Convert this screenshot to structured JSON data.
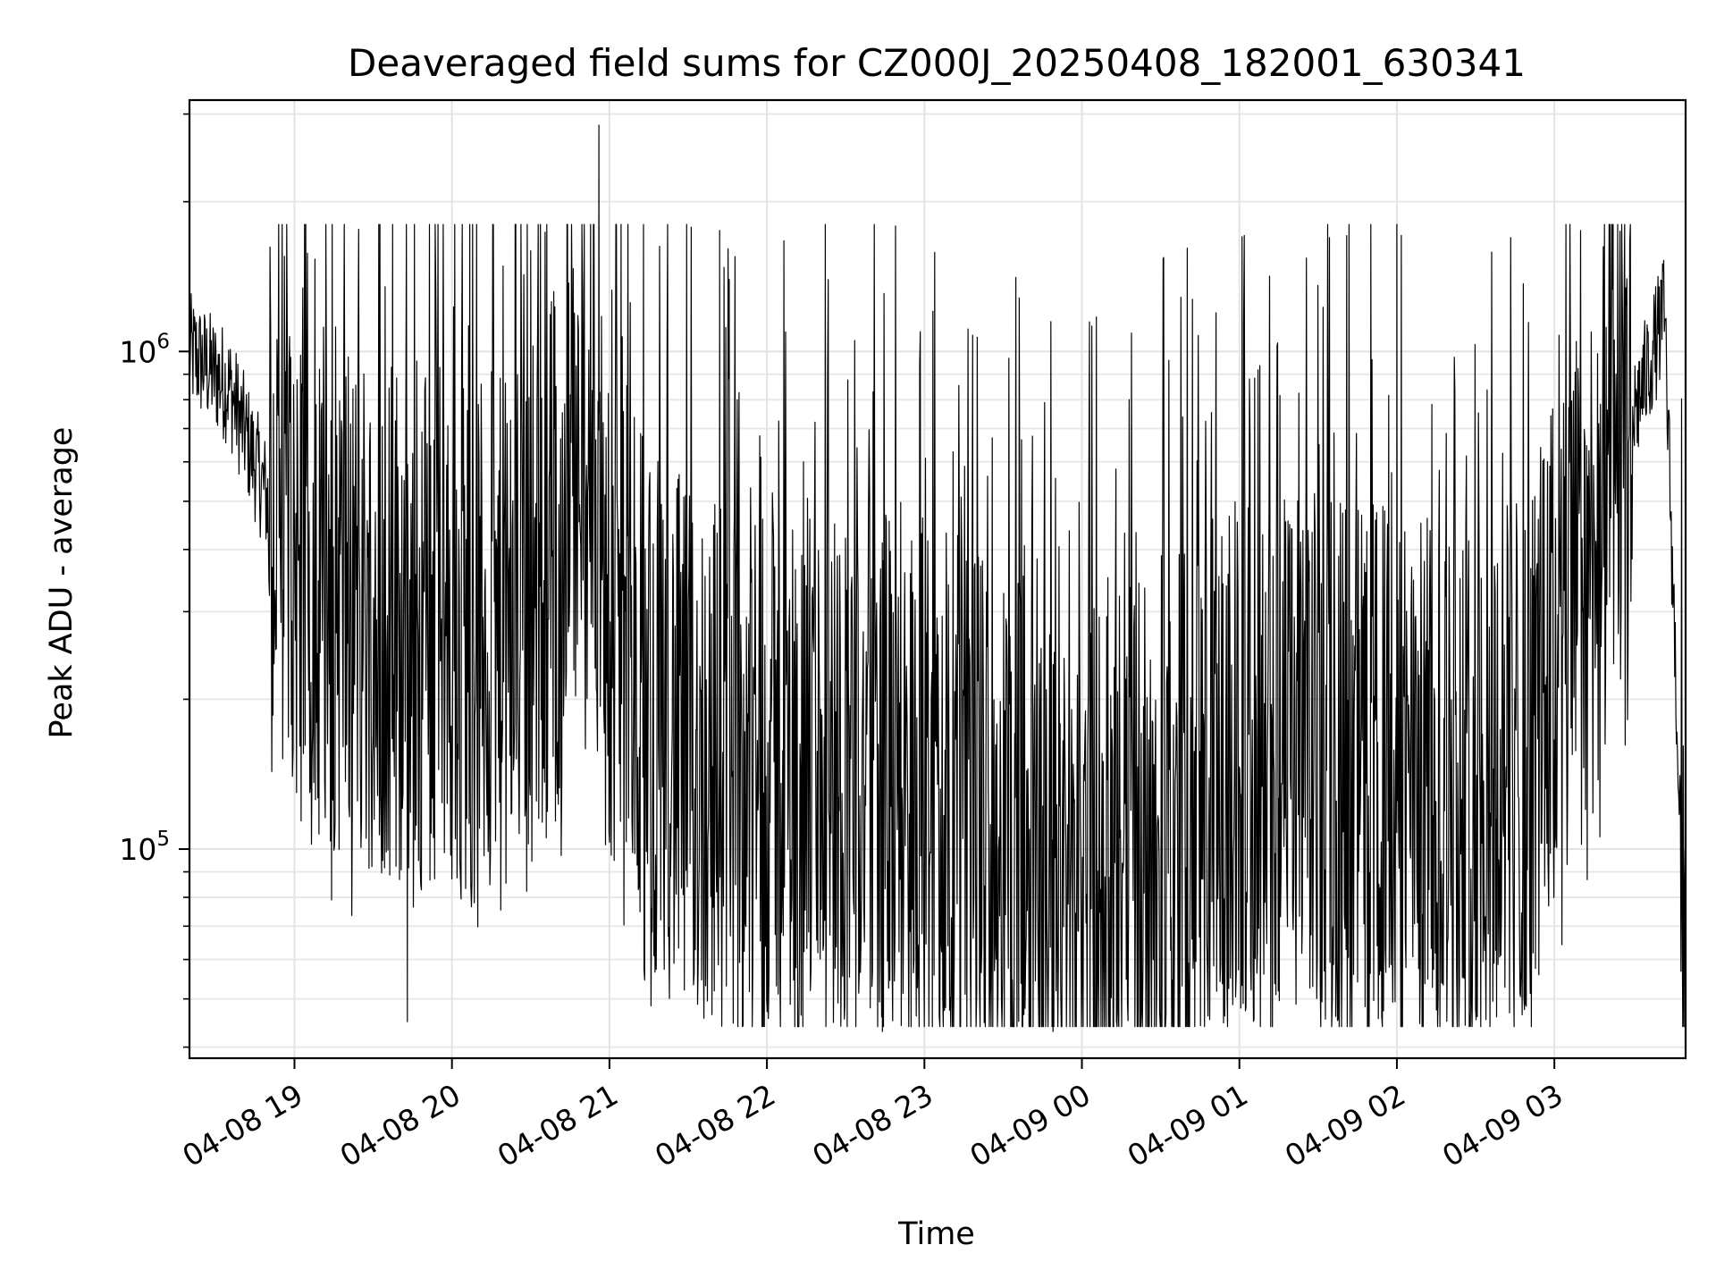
{
  "chart_data": {
    "type": "line",
    "title": "Deaveraged field sums for CZ000J_20250408_182001_630341",
    "xlabel": "Time",
    "ylabel": "Peak ADU - average",
    "yscale": "log",
    "grid": true,
    "x_range": [
      "04-08 18:20",
      "04-09 03:50"
    ],
    "ylim": [
      38000,
      3200000
    ],
    "x_ticks": [
      {
        "time": "04-08 19:00",
        "label": "04-08 19"
      },
      {
        "time": "04-08 20:00",
        "label": "04-08 20"
      },
      {
        "time": "04-08 21:00",
        "label": "04-08 21"
      },
      {
        "time": "04-08 22:00",
        "label": "04-08 22"
      },
      {
        "time": "04-08 23:00",
        "label": "04-08 23"
      },
      {
        "time": "04-09 00:00",
        "label": "04-09 00"
      },
      {
        "time": "04-09 01:00",
        "label": "04-09 01"
      },
      {
        "time": "04-09 02:00",
        "label": "04-09 02"
      },
      {
        "time": "04-09 03:00",
        "label": "04-09 03"
      }
    ],
    "y_ticks": [
      {
        "value": 100000,
        "base": "10",
        "exp": "5"
      },
      {
        "value": 1000000,
        "base": "10",
        "exp": "6"
      }
    ],
    "series": [
      {
        "color": "#000000",
        "x_start": "04-08 18:20",
        "x_end": "04-09 03:50",
        "note_points": [
          {
            "time": "04-08 18:20",
            "value": 1000000
          },
          {
            "time": "04-08 18:35",
            "value": 850000
          },
          {
            "time": "04-08 18:50",
            "value": 500000
          },
          {
            "time": "04-08 19:10",
            "value": 350000
          },
          {
            "time": "04-08 19:30",
            "value": 300000
          },
          {
            "time": "04-08 20:00",
            "value": 280000
          },
          {
            "time": "04-08 20:20",
            "value": 250000
          },
          {
            "time": "04-08 20:55",
            "value": 600000
          },
          {
            "time": "04-08 21:00",
            "value": 280000
          },
          {
            "time": "04-08 21:30",
            "value": 150000
          },
          {
            "time": "04-08 22:00",
            "value": 150000
          },
          {
            "time": "04-08 23:00",
            "value": 140000
          },
          {
            "time": "04-08 23:50",
            "value": 90000
          },
          {
            "time": "04-09 00:30",
            "value": 110000
          },
          {
            "time": "04-09 01:00",
            "value": 150000
          },
          {
            "time": "04-09 01:40",
            "value": 150000
          },
          {
            "time": "04-09 02:20",
            "value": 130000
          },
          {
            "time": "04-09 02:50",
            "value": 160000
          },
          {
            "time": "04-09 03:20",
            "value": 500000
          },
          {
            "time": "04-09 03:35",
            "value": 900000
          },
          {
            "time": "04-09 03:42",
            "value": 1200000
          },
          {
            "time": "04-09 03:50",
            "value": 50000
          }
        ],
        "notable_peaks": [
          {
            "time": "04-08 20:56",
            "value": 2850000
          },
          {
            "time": "04-08 21:42",
            "value": 1750000
          },
          {
            "time": "04-09 01:01",
            "value": 1700000
          },
          {
            "time": "04-09 02:00",
            "value": 1800000
          },
          {
            "time": "04-09 03:10",
            "value": 1750000
          }
        ],
        "notable_troughs": [
          {
            "time": "04-08 19:43",
            "value": 45000
          },
          {
            "time": "04-08 22:44",
            "value": 43000
          },
          {
            "time": "04-08 23:49",
            "value": 43000
          },
          {
            "time": "04-09 02:38",
            "value": 46000
          }
        ]
      }
    ]
  }
}
